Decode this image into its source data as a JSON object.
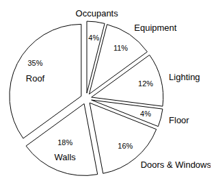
{
  "chart_data": {
    "type": "pie",
    "categories": [
      "Occupants",
      "Equipment",
      "Lighting",
      "Floor",
      "Doors & Windows",
      "Walls",
      "Roof"
    ],
    "values": [
      4,
      11,
      12,
      4,
      16,
      18,
      35
    ],
    "value_labels": [
      "4%",
      "11%",
      "12%",
      "4%",
      "16%",
      "18%",
      "35%"
    ],
    "data_labels": true,
    "color": "#ffffff"
  }
}
